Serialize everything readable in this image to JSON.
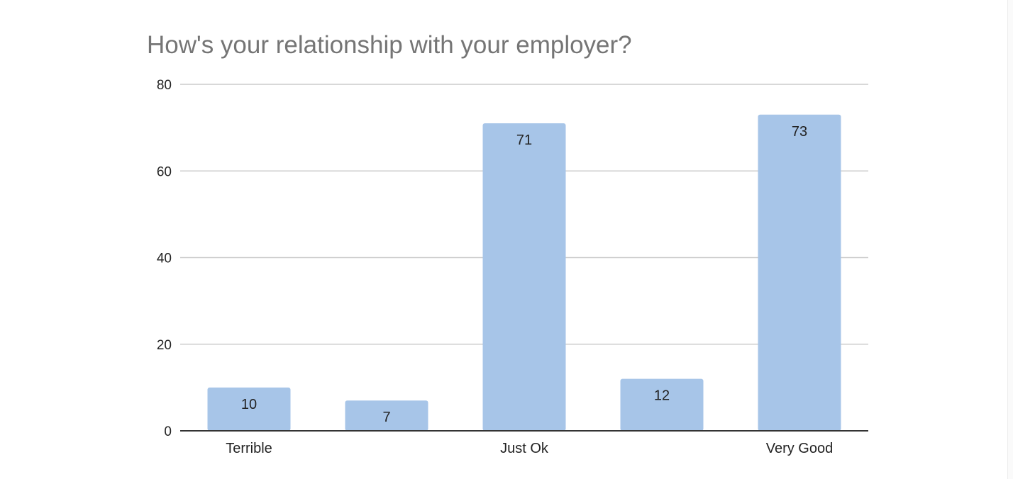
{
  "chart_data": {
    "type": "bar",
    "title": "How's your relationship with your employer?",
    "xlabel": "",
    "ylabel": "",
    "categories": [
      "Terrible",
      "",
      "Just Ok",
      "",
      "Very Good"
    ],
    "values": [
      10,
      7,
      71,
      12,
      73
    ],
    "ylim": [
      0,
      80
    ],
    "yticks": [
      "0",
      "20",
      "40",
      "60",
      "80"
    ],
    "grid": true,
    "legend": "none",
    "data_labels": true,
    "bar_color": "#a7c5e8",
    "gridline_color": "#cccccc",
    "axis_color": "#333333"
  }
}
